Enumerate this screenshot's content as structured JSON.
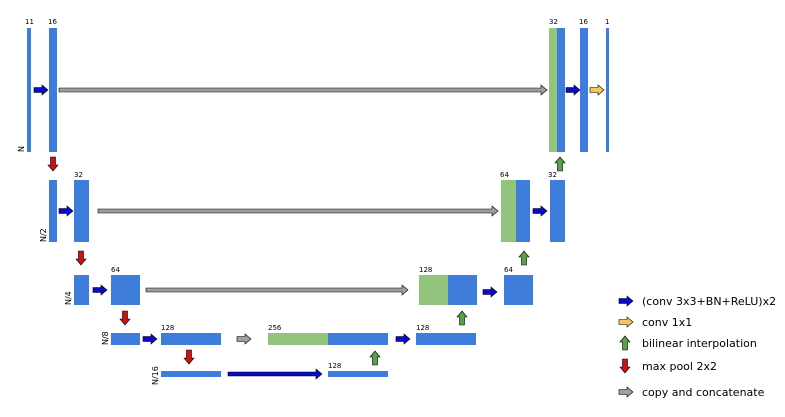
{
  "colors": {
    "blue_block": "#3f7ddc",
    "green_block": "#93c47d",
    "conv_arrow": "#0a0ac8",
    "conv1x1_arrow": "#f6c65b",
    "upsample_arrow": "#5aa04a",
    "maxpool_arrow": "#cc1111",
    "copy_arrow": "#9e9e9e",
    "edge": "#000000"
  },
  "level_labels": {
    "l0": "N",
    "l1": "N/2",
    "l2": "N/4",
    "l3": "N/8",
    "l4": "N/16"
  },
  "channel_labels": {
    "enc_l0_in": "11",
    "enc_l0_conv": "16",
    "enc_l1_conv": "32",
    "enc_l2_conv": "64",
    "enc_l3_conv": "128",
    "enc_l4_conv": "128",
    "dec_l3_concat": "256",
    "dec_l3_conv": "128",
    "dec_l2_concat": "128",
    "dec_l2_conv": "64",
    "dec_l1_concat": "64",
    "dec_l1_conv": "32",
    "dec_l0_concat": "32",
    "dec_l0_conv": "16",
    "output": "1"
  },
  "legend": {
    "conv": {
      "icon": "blue-right-arrow",
      "label": "(conv 3x3+BN+ReLU)x2"
    },
    "conv1x1": {
      "icon": "yellow-right-arrow",
      "label": "conv 1x1"
    },
    "upsample": {
      "icon": "green-up-arrow",
      "label": "bilinear interpolation"
    },
    "maxpool": {
      "icon": "red-down-arrow",
      "label": "max pool 2x2"
    },
    "copy": {
      "icon": "gray-right-arrow",
      "label": "copy and concatenate"
    }
  }
}
